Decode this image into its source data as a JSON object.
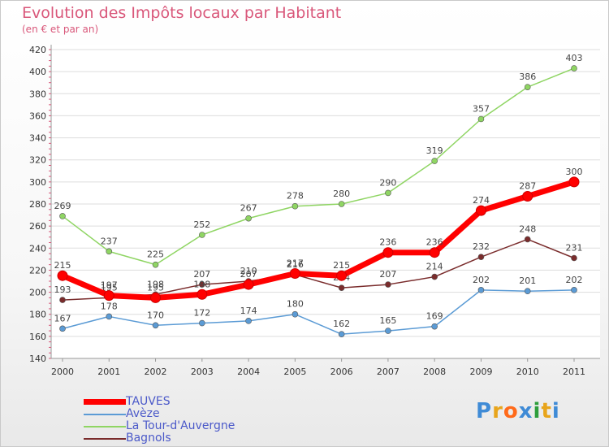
{
  "title": "Evolution des Impôts locaux par Habitant",
  "subtitle": "(en € et par an)",
  "logo": {
    "text": "Proxiti",
    "colors": [
      "#3f8bd6",
      "#e8a51c",
      "#ff6a1a",
      "#3f8bd6",
      "#2e9e3c",
      "#e8a51c",
      "#3f8bd6"
    ]
  },
  "chart_data": {
    "type": "line",
    "x": [
      "2000",
      "2001",
      "2002",
      "2003",
      "2004",
      "2005",
      "2006",
      "2007",
      "2008",
      "2009",
      "2010",
      "2011"
    ],
    "ylim": [
      140,
      420
    ],
    "yticks": [
      140,
      160,
      180,
      200,
      220,
      240,
      260,
      280,
      300,
      320,
      340,
      360,
      380,
      400,
      420
    ],
    "grid": "horizontal",
    "legend": "bottom-left",
    "series": [
      {
        "name": "Avèze",
        "color": "#5b9bd5",
        "values": [
          167,
          178,
          170,
          172,
          174,
          180,
          162,
          165,
          169,
          202,
          201,
          202
        ]
      },
      {
        "name": "La Tour-d'Auvergne",
        "color": "#8fd563",
        "values": [
          269,
          237,
          225,
          252,
          267,
          278,
          280,
          290,
          319,
          357,
          386,
          403
        ]
      },
      {
        "name": "Bagnols",
        "color": "#7a2c2c",
        "values": [
          193,
          195,
          198,
          207,
          210,
          216,
          204,
          207,
          214,
          232,
          248,
          231
        ]
      },
      {
        "name": "TAUVES",
        "color": "#ff0000",
        "values": [
          215,
          197,
          195,
          198,
          207,
          217,
          215,
          236,
          236,
          274,
          287,
          300
        ]
      }
    ],
    "legend_order": [
      "TAUVES",
      "Avèze",
      "La Tour-d'Auvergne",
      "Bagnols"
    ]
  }
}
